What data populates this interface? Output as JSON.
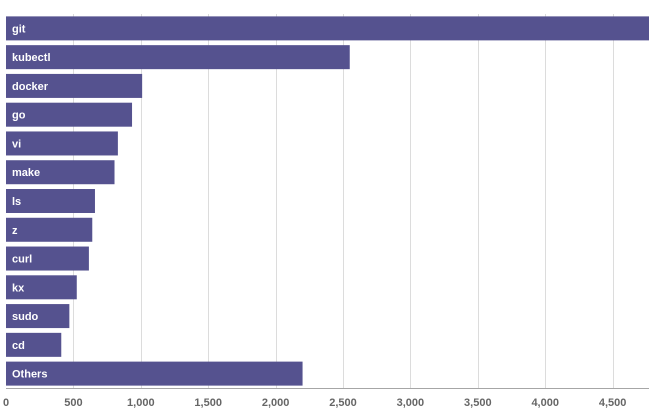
{
  "chart_data": {
    "type": "bar",
    "orientation": "horizontal",
    "categories": [
      "git",
      "kubectl",
      "docker",
      "go",
      "vi",
      "make",
      "ls",
      "z",
      "curl",
      "kx",
      "sudo",
      "cd",
      "Others"
    ],
    "values": [
      4770,
      2550,
      1010,
      935,
      830,
      805,
      660,
      640,
      615,
      525,
      470,
      410,
      2200
    ],
    "xlim": [
      0,
      4770
    ],
    "x_ticks": [
      0,
      500,
      1000,
      1500,
      2000,
      2500,
      3000,
      3500,
      4000,
      4500
    ],
    "x_tick_labels": [
      "0",
      "500",
      "1,000",
      "1,500",
      "2,000",
      "2,500",
      "3,000",
      "3,500",
      "4,000",
      "4,500"
    ],
    "grid": true,
    "bar_color": "#55528f",
    "label_color": "#ffffff",
    "tick_label_color": "#666666",
    "grid_color": "#dcdcdc",
    "axis_color": "#a6a6a6"
  }
}
